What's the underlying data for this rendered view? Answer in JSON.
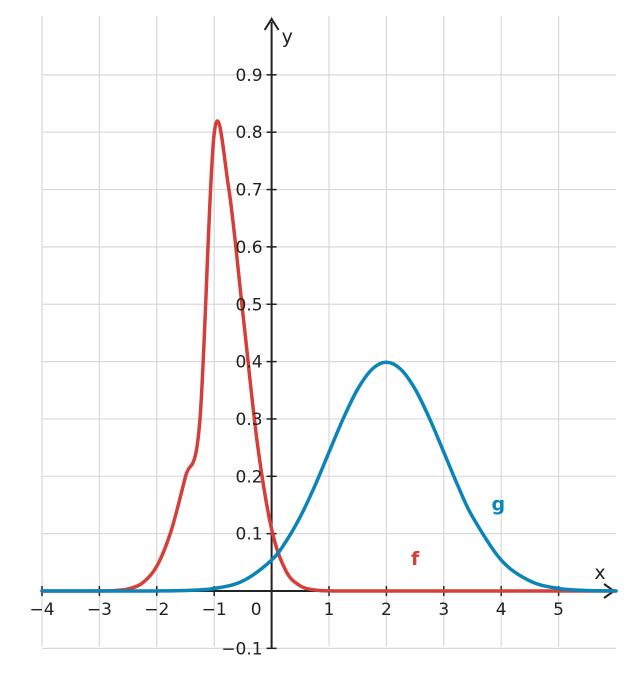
{
  "chart_data": {
    "type": "line",
    "title": "",
    "xlabel": "x",
    "ylabel": "y",
    "xlim": [
      -4,
      6
    ],
    "ylim": [
      -0.1,
      1.0
    ],
    "grid": true,
    "origin_label": "0",
    "x_ticks": [
      {
        "value": -4,
        "label": "−4"
      },
      {
        "value": -3,
        "label": "−3"
      },
      {
        "value": -2,
        "label": "−2"
      },
      {
        "value": -1,
        "label": "−1"
      },
      {
        "value": 1,
        "label": "1"
      },
      {
        "value": 2,
        "label": "2"
      },
      {
        "value": 3,
        "label": "3"
      },
      {
        "value": 4,
        "label": "4"
      },
      {
        "value": 5,
        "label": "5"
      }
    ],
    "y_ticks": [
      {
        "value": -0.1,
        "label": "−0.1"
      },
      {
        "value": 0.1,
        "label": "0.1"
      },
      {
        "value": 0.2,
        "label": "0.2"
      },
      {
        "value": 0.3,
        "label": "0.3"
      },
      {
        "value": 0.4,
        "label": "0.4"
      },
      {
        "value": 0.5,
        "label": "0.5"
      },
      {
        "value": 0.6,
        "label": "0.6"
      },
      {
        "value": 0.7,
        "label": "0.7"
      },
      {
        "value": 0.8,
        "label": "0.8"
      },
      {
        "value": 0.9,
        "label": "0.9"
      }
    ],
    "series": [
      {
        "name": "f",
        "color": "#d43f3a",
        "x": [
          -4,
          -3.5,
          -3,
          -2.75,
          -2.5,
          -2.25,
          -2,
          -1.75,
          -1.5,
          -1.25,
          -1,
          -0.75,
          -0.5,
          -0.25,
          0,
          0.25,
          0.5,
          0.75,
          1,
          1.5,
          2,
          3,
          4,
          5,
          6
        ],
        "y": [
          0,
          0,
          0.0001,
          0.0007,
          0.0035,
          0.0139,
          0.0432,
          0.105,
          0.1995,
          0.2966,
          0.7979,
          0.7041,
          0.4839,
          0.259,
          0.108,
          0.035,
          0.0089,
          0.0018,
          0.0003,
          0,
          0,
          0,
          0,
          0,
          0
        ]
      },
      {
        "name": "g",
        "color": "#0b84b8",
        "x": [
          -4,
          -3,
          -2,
          -1.5,
          -1,
          -0.5,
          0,
          0.25,
          0.5,
          0.75,
          1,
          1.25,
          1.5,
          1.75,
          2,
          2.25,
          2.5,
          2.75,
          3,
          3.25,
          3.5,
          4,
          4.5,
          5,
          5.5,
          6
        ],
        "y": [
          0,
          0,
          0.0001,
          0.0009,
          0.0044,
          0.0175,
          0.054,
          0.0863,
          0.1295,
          0.1826,
          0.242,
          0.3011,
          0.3521,
          0.3867,
          0.3989,
          0.3867,
          0.3521,
          0.3011,
          0.242,
          0.1826,
          0.1295,
          0.054,
          0.0175,
          0.0044,
          0.0009,
          0.0001
        ]
      }
    ],
    "annotations": [
      {
        "text": "f",
        "x": 2.5,
        "y": 0.045,
        "series": "f"
      },
      {
        "text": "g",
        "x": 3.95,
        "y": 0.14,
        "series": "g"
      }
    ]
  }
}
